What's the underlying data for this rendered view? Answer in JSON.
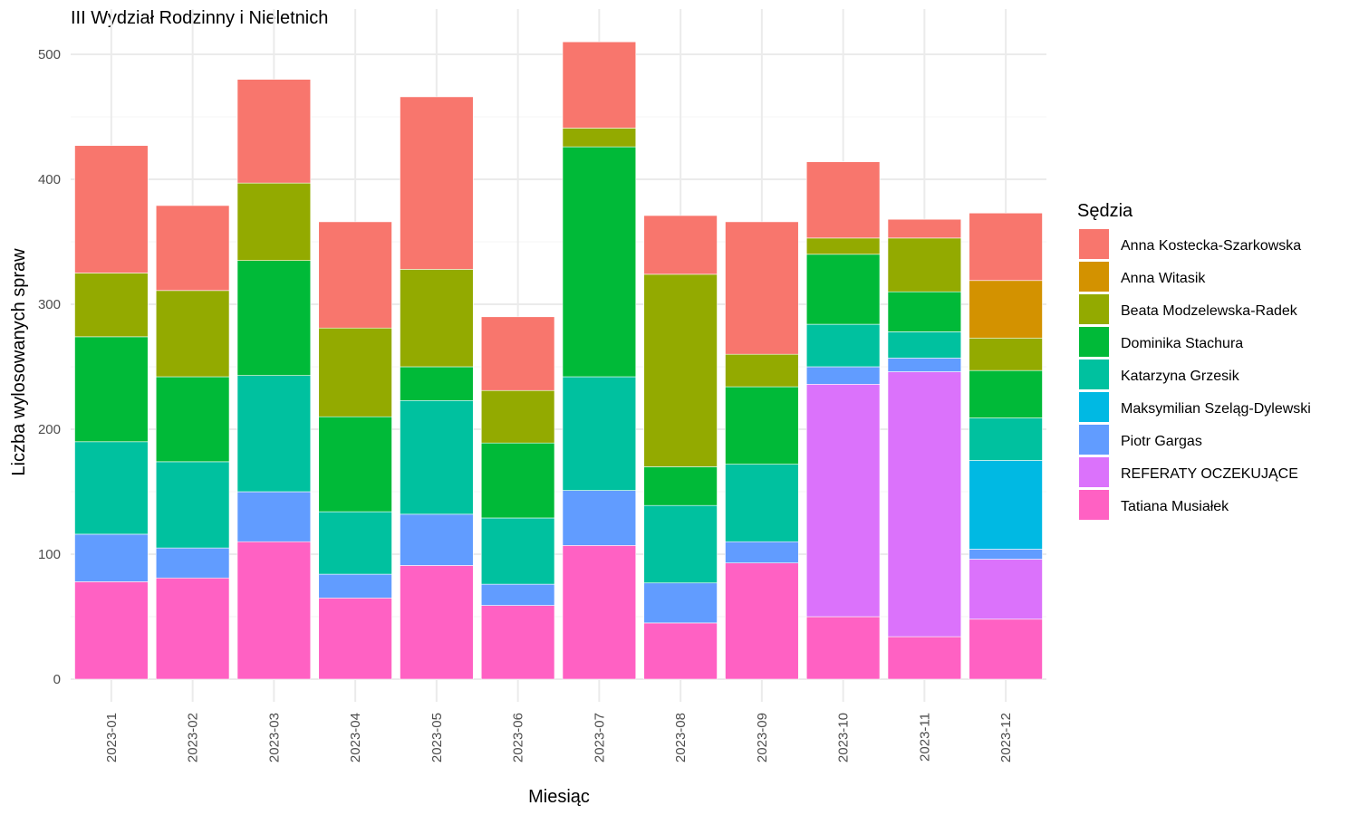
{
  "chart_data": {
    "type": "bar",
    "stacked": true,
    "title": "III Wydział Rodzinny i Nieletnich",
    "xlabel": "Miesiąc",
    "ylabel": "Liczba wylosowanych spraw",
    "ylim": [
      0,
      530
    ],
    "yticks": [
      0,
      100,
      200,
      300,
      400,
      500
    ],
    "grid": true,
    "legend": {
      "title": "Sędzia",
      "position": "right"
    },
    "categories": [
      "2023-01",
      "2023-02",
      "2023-03",
      "2023-04",
      "2023-05",
      "2023-06",
      "2023-07",
      "2023-08",
      "2023-09",
      "2023-10",
      "2023-11",
      "2023-12"
    ],
    "series": [
      {
        "name": "Tatiana Musiałek",
        "color": "#FF61C3",
        "values": [
          78,
          81,
          110,
          65,
          91,
          59,
          107,
          45,
          93,
          50,
          34,
          48
        ]
      },
      {
        "name": "REFERATY OCZEKUJĄCE",
        "color": "#DB72FB",
        "values": [
          0,
          0,
          0,
          0,
          0,
          0,
          0,
          0,
          0,
          186,
          212,
          48
        ]
      },
      {
        "name": "Piotr Gargas",
        "color": "#619CFF",
        "values": [
          38,
          24,
          40,
          19,
          41,
          17,
          44,
          32,
          17,
          14,
          11,
          8
        ]
      },
      {
        "name": "Maksymilian Szeląg-Dylewski",
        "color": "#00B9E3",
        "values": [
          0,
          0,
          0,
          0,
          0,
          0,
          0,
          0,
          0,
          0,
          0,
          71
        ]
      },
      {
        "name": "Katarzyna Grzesik",
        "color": "#00C19F",
        "values": [
          74,
          69,
          93,
          50,
          91,
          53,
          91,
          62,
          62,
          34,
          21,
          34
        ]
      },
      {
        "name": "Dominika Stachura",
        "color": "#00BA38",
        "values": [
          84,
          68,
          92,
          76,
          27,
          60,
          184,
          31,
          62,
          56,
          32,
          38
        ]
      },
      {
        "name": "Beata Modzelewska-Radek",
        "color": "#93AA00",
        "values": [
          51,
          69,
          62,
          71,
          78,
          42,
          15,
          154,
          26,
          13,
          43,
          26
        ]
      },
      {
        "name": "Anna Witasik",
        "color": "#D39200",
        "values": [
          0,
          0,
          0,
          0,
          0,
          0,
          0,
          0,
          0,
          0,
          0,
          46
        ]
      },
      {
        "name": "Anna Kostecka-Szarkowska",
        "color": "#F8766D",
        "values": [
          102,
          68,
          83,
          85,
          138,
          59,
          69,
          47,
          106,
          61,
          15,
          54
        ]
      }
    ],
    "legend_order": [
      "Anna Kostecka-Szarkowska",
      "Anna Witasik",
      "Beata Modzelewska-Radek",
      "Dominika Stachura",
      "Katarzyna Grzesik",
      "Maksymilian Szeląg-Dylewski",
      "Piotr Gargas",
      "REFERATY OCZEKUJĄCE",
      "Tatiana Musiałek"
    ]
  }
}
